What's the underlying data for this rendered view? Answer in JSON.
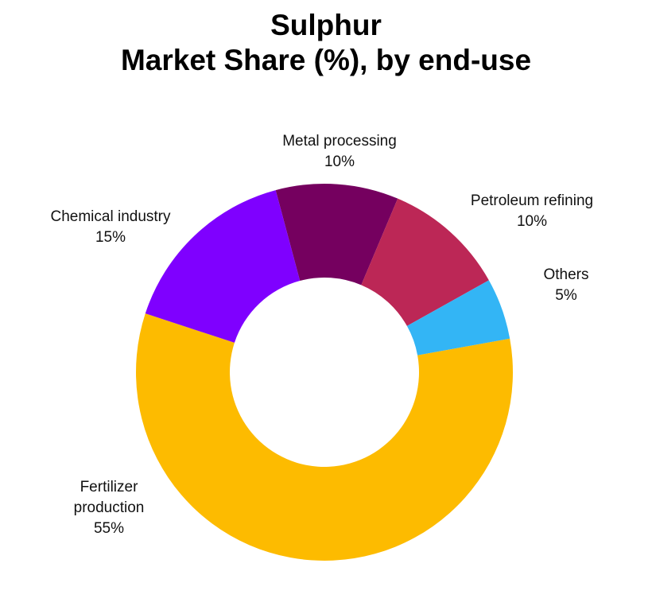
{
  "chart_data": {
    "type": "pie",
    "title": [
      "Sulphur",
      "Market Share (%), by end-use"
    ],
    "series": [
      {
        "categories": [
          "Metal processing",
          "Petroleum refining",
          "Others",
          "Fertilizer production",
          "Chemical industry"
        ],
        "values": [
          10,
          10,
          5,
          55,
          15
        ],
        "value_labels": [
          "10%",
          "10%",
          "5%",
          "55%",
          "15%"
        ],
        "colors": [
          "#75005F",
          "#BC2756",
          "#33B5F5",
          "#FDBB00",
          "#7F00FF"
        ]
      }
    ],
    "donut": true,
    "label_lines": [
      [
        "Metal processing",
        "10%"
      ],
      [
        "Petroleum refining",
        "10%"
      ],
      [
        "Others",
        "5%"
      ],
      [
        "Fertilizer",
        "production",
        "55%"
      ],
      [
        "Chemical industry",
        "15%"
      ]
    ]
  }
}
